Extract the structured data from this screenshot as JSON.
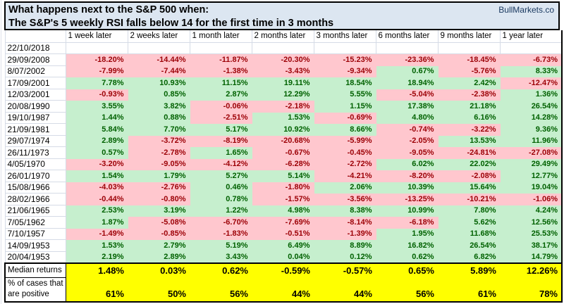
{
  "chart_data": {
    "type": "table",
    "title_line1": "What happens next to the S&P 500 when:",
    "title_line2": "The S&P's 5 weekly RSI falls below 14 for the first time in 3 months",
    "source": "BullMarkets.co",
    "columns": [
      "1 week later",
      "2 weeks later",
      "1 month later",
      "2 months later",
      "3 months later",
      "6 months later",
      "9 months later",
      "1 year later"
    ],
    "rows": [
      {
        "date": "22/10/2018",
        "values": [
          null,
          null,
          null,
          null,
          null,
          null,
          null,
          null
        ]
      },
      {
        "date": "29/09/2008",
        "values": [
          "-18.20%",
          "-14.44%",
          "-11.87%",
          "-20.30%",
          "-15.23%",
          "-23.36%",
          "-18.45%",
          "-6.73%"
        ]
      },
      {
        "date": "8/07/2002",
        "values": [
          "-7.99%",
          "-7.44%",
          "-1.38%",
          "-3.43%",
          "-9.34%",
          "0.67%",
          "-5.76%",
          "8.33%"
        ]
      },
      {
        "date": "17/09/2001",
        "values": [
          "7.78%",
          "10.93%",
          "11.15%",
          "19.11%",
          "18.54%",
          "18.94%",
          "2.42%",
          "-12.47%"
        ]
      },
      {
        "date": "12/03/2001",
        "values": [
          "-0.93%",
          "0.85%",
          "2.87%",
          "12.29%",
          "5.55%",
          "-5.04%",
          "-2.38%",
          "1.36%"
        ]
      },
      {
        "date": "20/08/1990",
        "values": [
          "3.55%",
          "3.82%",
          "-0.06%",
          "-2.18%",
          "1.15%",
          "17.38%",
          "21.18%",
          "26.54%"
        ]
      },
      {
        "date": "19/10/1987",
        "values": [
          "1.44%",
          "0.88%",
          "-2.51%",
          "1.53%",
          "-0.69%",
          "4.80%",
          "6.16%",
          "14.28%"
        ]
      },
      {
        "date": "21/09/1981",
        "values": [
          "5.84%",
          "7.70%",
          "5.17%",
          "10.92%",
          "8.66%",
          "-0.74%",
          "-3.22%",
          "9.36%"
        ]
      },
      {
        "date": "29/07/1974",
        "values": [
          "2.89%",
          "-3.72%",
          "-8.19%",
          "-20.68%",
          "-5.99%",
          "-2.05%",
          "13.53%",
          "11.96%"
        ]
      },
      {
        "date": "26/11/1973",
        "values": [
          "0.57%",
          "-2.78%",
          "1.65%",
          "-0.67%",
          "-0.45%",
          "-9.05%",
          "-24.81%",
          "-27.08%"
        ]
      },
      {
        "date": "4/05/1970",
        "values": [
          "-3.20%",
          "-9.05%",
          "-4.12%",
          "-6.28%",
          "-2.72%",
          "6.02%",
          "22.02%",
          "29.49%"
        ]
      },
      {
        "date": "26/01/1970",
        "values": [
          "1.54%",
          "1.79%",
          "5.27%",
          "5.14%",
          "-4.21%",
          "-8.20%",
          "-2.08%",
          "12.77%"
        ]
      },
      {
        "date": "15/08/1966",
        "values": [
          "-4.03%",
          "-2.76%",
          "0.46%",
          "-1.80%",
          "2.06%",
          "10.39%",
          "15.64%",
          "19.04%"
        ]
      },
      {
        "date": "28/02/1966",
        "values": [
          "-0.44%",
          "-0.80%",
          "0.78%",
          "-1.57%",
          "-3.56%",
          "-13.25%",
          "-10.21%",
          "-1.06%"
        ]
      },
      {
        "date": "21/06/1965",
        "values": [
          "2.53%",
          "3.19%",
          "1.22%",
          "4.98%",
          "8.38%",
          "10.99%",
          "7.80%",
          "4.24%"
        ]
      },
      {
        "date": "7/05/1962",
        "values": [
          "1.87%",
          "-5.08%",
          "-6.70%",
          "-7.69%",
          "-8.14%",
          "-6.18%",
          "5.62%",
          "12.56%"
        ]
      },
      {
        "date": "7/10/1957",
        "values": [
          "-1.49%",
          "-0.85%",
          "-1.83%",
          "-0.51%",
          "-1.39%",
          "1.95%",
          "11.68%",
          "25.53%"
        ]
      },
      {
        "date": "14/09/1953",
        "values": [
          "1.53%",
          "2.79%",
          "5.19%",
          "6.49%",
          "8.89%",
          "16.82%",
          "26.54%",
          "38.17%"
        ]
      },
      {
        "date": "20/04/1953",
        "values": [
          "2.19%",
          "2.89%",
          "3.43%",
          "0.04%",
          "0.12%",
          "0.62%",
          "6.82%",
          "14.79%"
        ]
      }
    ],
    "summary_rows": [
      {
        "kind": "median",
        "label_lines": [
          "Median returns"
        ],
        "values": [
          "1.48%",
          "0.03%",
          "0.62%",
          "-0.59%",
          "-0.57%",
          "0.65%",
          "5.89%",
          "12.26%"
        ]
      },
      {
        "kind": "positive",
        "label_lines": [
          "% of cases that",
          "are positive"
        ],
        "values": [
          "61%",
          "50%",
          "56%",
          "44%",
          "44%",
          "56%",
          "61%",
          "78%"
        ]
      }
    ],
    "colors": {
      "title_bg": "#dce6f1",
      "positive_bg": "#c6efce",
      "positive_text": "#006100",
      "negative_bg": "#ffc7ce",
      "negative_text": "#9c0006",
      "summary_bg": "#ffff00",
      "gridline": "#d5dbe6"
    }
  }
}
